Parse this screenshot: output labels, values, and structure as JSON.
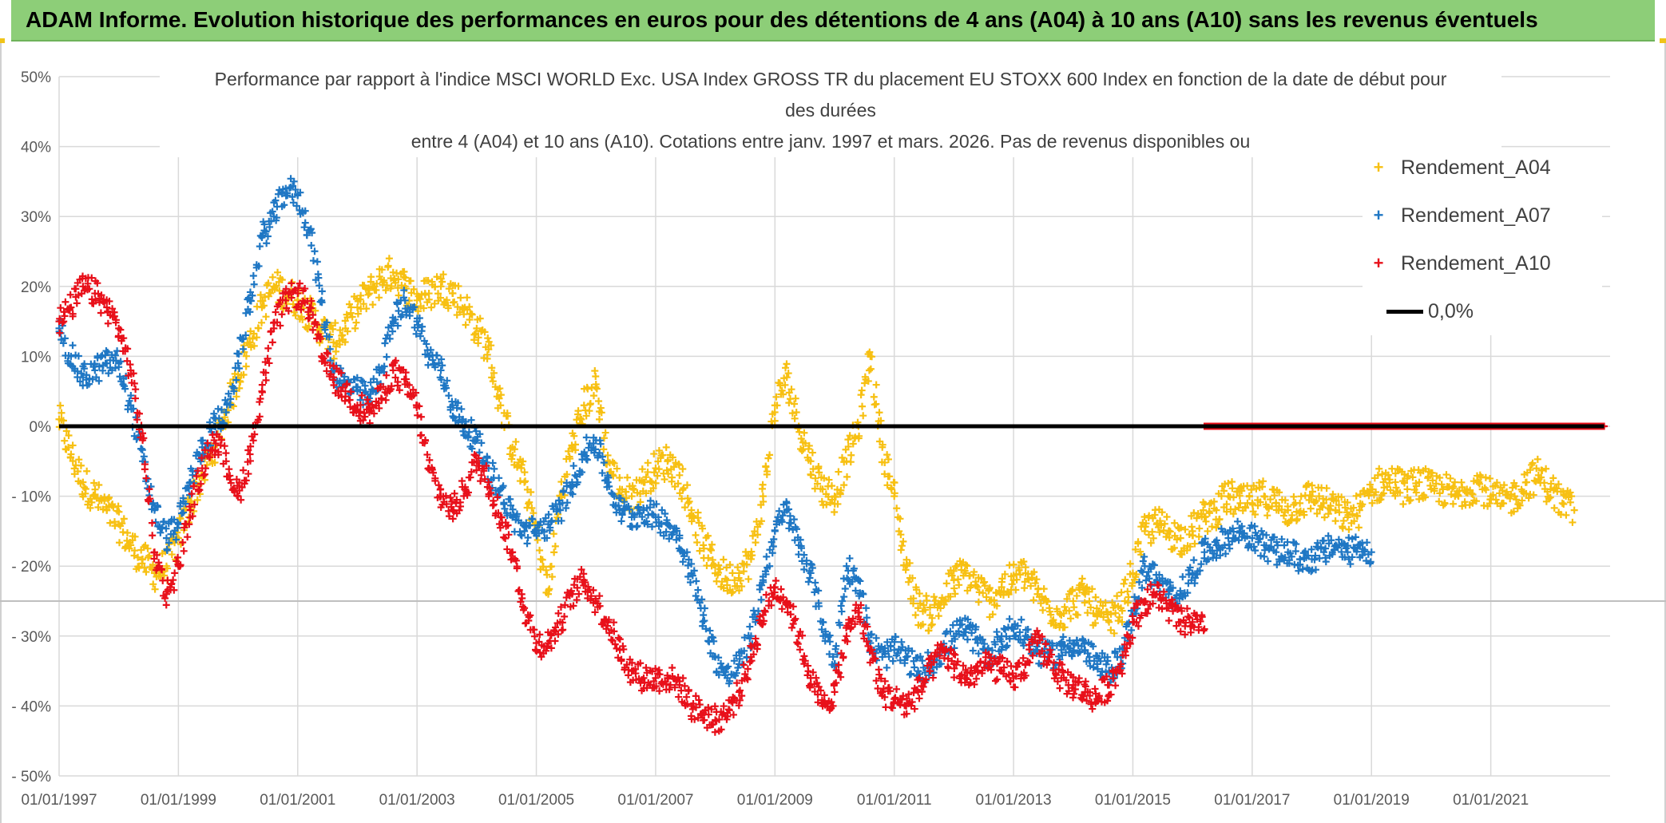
{
  "header": {
    "title": "ADAM Informe. Evolution historique des performances en euros pour des détentions de 4 ans (A04) à 10 ans (A10) sans les revenus éventuels"
  },
  "colors": {
    "banner": "#8dce78",
    "a04": "#f7c012",
    "a07": "#1f77c4",
    "a10": "#e8101a",
    "zero": "#000000",
    "grid": "#d9d9d9"
  },
  "chart_data": {
    "type": "scatter",
    "title_lines": [
      "Performance par rapport à l'indice MSCI WORLD Exc. USA Index GROSS TR  du placement EU STOXX 600 Index en fonction de la date de début pour",
      "des durées",
      "entre 4 (A04) et 10 ans (A10). Cotations entre janv. 1997 et mars. 2026. Pas de revenus disponibles ou"
    ],
    "x_range": [
      1997.0,
      2023.0
    ],
    "x_ticks": [
      {
        "value": 1997,
        "label": "01/01/1997"
      },
      {
        "value": 1999,
        "label": "01/01/1999"
      },
      {
        "value": 2001,
        "label": "01/01/2001"
      },
      {
        "value": 2003,
        "label": "01/01/2003"
      },
      {
        "value": 2005,
        "label": "01/01/2005"
      },
      {
        "value": 2007,
        "label": "01/01/2007"
      },
      {
        "value": 2009,
        "label": "01/01/2009"
      },
      {
        "value": 2011,
        "label": "01/01/2011"
      },
      {
        "value": 2013,
        "label": "01/01/2013"
      },
      {
        "value": 2015,
        "label": "01/01/2015"
      },
      {
        "value": 2017,
        "label": "01/01/2017"
      },
      {
        "value": 2019,
        "label": "01/01/2019"
      },
      {
        "value": 2021,
        "label": "01/01/2021"
      }
    ],
    "ylim": [
      -50,
      50
    ],
    "y_ticks": [
      {
        "value": 50,
        "label": "50%"
      },
      {
        "value": 40,
        "label": "40%"
      },
      {
        "value": 30,
        "label": "30%"
      },
      {
        "value": 20,
        "label": "20%"
      },
      {
        "value": 10,
        "label": "10%"
      },
      {
        "value": 0,
        "label": "0%"
      },
      {
        "value": -10,
        "label": "- 10%"
      },
      {
        "value": -20,
        "label": "- 20%"
      },
      {
        "value": -30,
        "label": "- 30%"
      },
      {
        "value": -40,
        "label": "- 40%"
      },
      {
        "value": -50,
        "label": "- 50%"
      }
    ],
    "grid": true,
    "legend_position": "top-right",
    "legend": [
      "Rendement_A04",
      "Rendement_A07",
      "Rendement_A10",
      "0,0%"
    ],
    "reference_line": {
      "name": "0,0%",
      "value": 0
    },
    "series": [
      {
        "name": "Rendement_A04",
        "x": [
          1997.0,
          1997.2,
          1997.4,
          1997.6,
          1997.8,
          1998.0,
          1998.2,
          1998.4,
          1998.6,
          1998.8,
          1999.0,
          1999.2,
          1999.4,
          1999.6,
          1999.8,
          2000.0,
          2000.2,
          2000.4,
          2000.6,
          2000.8,
          2001.0,
          2001.2,
          2001.4,
          2001.6,
          2001.8,
          2002.0,
          2002.2,
          2002.4,
          2002.6,
          2002.8,
          2003.0,
          2003.2,
          2003.4,
          2003.6,
          2003.8,
          2004.0,
          2004.2,
          2004.4,
          2004.6,
          2004.8,
          2005.0,
          2005.2,
          2005.4,
          2005.6,
          2005.8,
          2006.0,
          2006.2,
          2006.4,
          2006.6,
          2006.8,
          2007.0,
          2007.2,
          2007.4,
          2007.6,
          2007.8,
          2008.0,
          2008.2,
          2008.4,
          2008.6,
          2008.8,
          2009.0,
          2009.2,
          2009.4,
          2009.6,
          2009.8,
          2010.0,
          2010.2,
          2010.4,
          2010.6,
          2010.8,
          2011.0,
          2011.2,
          2011.4,
          2011.6,
          2011.8,
          2012.0,
          2012.2,
          2012.4,
          2012.6,
          2012.8,
          2013.0,
          2013.2,
          2013.4,
          2013.6,
          2013.8,
          2014.0,
          2014.2,
          2014.4,
          2014.6,
          2014.8,
          2015.0,
          2015.2,
          2015.4,
          2015.6,
          2015.8,
          2016.0,
          2016.2,
          2016.4,
          2016.6,
          2016.8,
          2017.0,
          2017.2,
          2017.4,
          2017.6,
          2017.8,
          2018.0,
          2018.2,
          2018.4,
          2018.6,
          2018.8,
          2019.0,
          2019.2,
          2019.4,
          2019.6,
          2019.8,
          2020.0,
          2020.2,
          2020.4,
          2020.6,
          2020.8,
          2021.0,
          2021.2,
          2021.4,
          2021.6,
          2021.8,
          2022.0,
          2022.2,
          2022.4
        ],
        "values": [
          1,
          -4,
          -8,
          -10,
          -12,
          -14,
          -17,
          -19,
          -21,
          -20,
          -16,
          -11,
          -7,
          -3,
          2,
          7,
          12,
          17,
          20,
          19,
          18,
          16,
          14,
          12,
          14,
          17,
          19,
          21,
          22,
          20,
          18,
          19,
          20,
          19,
          17,
          14,
          11,
          3,
          -3,
          -8,
          -15,
          -24,
          -10,
          -3,
          3,
          6,
          -5,
          -9,
          -10,
          -8,
          -6,
          -5,
          -7,
          -12,
          -17,
          -20,
          -22,
          -21,
          -19,
          -10,
          3,
          7,
          0,
          -5,
          -9,
          -10,
          -5,
          0,
          10,
          -3,
          -10,
          -20,
          -26,
          -27,
          -25,
          -22,
          -21,
          -23,
          -25,
          -23,
          -22,
          -21,
          -24,
          -26,
          -27,
          -25,
          -24,
          -27,
          -28,
          -26,
          -21,
          -15,
          -14,
          -15,
          -16,
          -15,
          -13,
          -12,
          -10,
          -11,
          -11,
          -10,
          -11,
          -12,
          -11,
          -10,
          -11,
          -12,
          -13,
          -12,
          -9,
          -8,
          -8,
          -9,
          -8,
          -9,
          -9,
          -10,
          -9,
          -8,
          -10,
          -11,
          -10,
          -8,
          -7,
          -9,
          -11,
          -12
        ]
      },
      {
        "name": "Rendement_A07",
        "x": [
          1997.0,
          1997.2,
          1997.4,
          1997.6,
          1997.8,
          1998.0,
          1998.2,
          1998.4,
          1998.6,
          1998.8,
          1999.0,
          1999.2,
          1999.4,
          1999.6,
          1999.8,
          2000.0,
          2000.2,
          2000.4,
          2000.6,
          2000.8,
          2001.0,
          2001.2,
          2001.4,
          2001.6,
          2001.8,
          2002.0,
          2002.2,
          2002.4,
          2002.6,
          2002.8,
          2003.0,
          2003.2,
          2003.4,
          2003.6,
          2003.8,
          2004.0,
          2004.2,
          2004.4,
          2004.6,
          2004.8,
          2005.0,
          2005.2,
          2005.4,
          2005.6,
          2005.8,
          2006.0,
          2006.2,
          2006.4,
          2006.6,
          2006.8,
          2007.0,
          2007.2,
          2007.4,
          2007.6,
          2007.8,
          2008.0,
          2008.2,
          2008.4,
          2008.6,
          2008.8,
          2009.0,
          2009.2,
          2009.4,
          2009.6,
          2009.8,
          2010.0,
          2010.2,
          2010.4,
          2010.6,
          2010.8,
          2011.0,
          2011.2,
          2011.4,
          2011.6,
          2011.8,
          2012.0,
          2012.2,
          2012.4,
          2012.6,
          2012.8,
          2013.0,
          2013.2,
          2013.4,
          2013.6,
          2013.8,
          2014.0,
          2014.2,
          2014.4,
          2014.6,
          2014.8,
          2015.0,
          2015.2,
          2015.4,
          2015.6,
          2015.8,
          2016.0,
          2016.2,
          2016.4,
          2016.6,
          2016.8,
          2017.0,
          2017.2,
          2017.4,
          2017.6,
          2017.8,
          2018.0,
          2018.2,
          2018.4,
          2018.6,
          2018.8,
          2019.0
        ],
        "values": [
          14,
          10,
          7,
          8,
          9,
          9,
          3,
          -5,
          -12,
          -16,
          -14,
          -8,
          -3,
          0,
          2,
          9,
          18,
          27,
          30,
          34,
          33,
          28,
          18,
          8,
          6,
          5,
          4,
          8,
          15,
          18,
          15,
          10,
          8,
          3,
          0,
          -2,
          -6,
          -9,
          -13,
          -15,
          -15,
          -14,
          -12,
          -8,
          -4,
          -2,
          -8,
          -12,
          -13,
          -12,
          -13,
          -14,
          -16,
          -21,
          -27,
          -33,
          -36,
          -34,
          -30,
          -22,
          -15,
          -12,
          -17,
          -21,
          -28,
          -34,
          -20,
          -22,
          -31,
          -33,
          -32,
          -33,
          -35,
          -34,
          -32,
          -30,
          -29,
          -31,
          -33,
          -30,
          -29,
          -30,
          -32,
          -33,
          -32,
          -31,
          -32,
          -34,
          -35,
          -33,
          -27,
          -20,
          -22,
          -24,
          -24,
          -21,
          -18,
          -17,
          -16,
          -15,
          -16,
          -17,
          -18,
          -18,
          -19,
          -19,
          -18,
          -17,
          -18,
          -17,
          -18
        ]
      },
      {
        "name": "Rendement_A10",
        "x": [
          1997.0,
          1997.2,
          1997.4,
          1997.6,
          1997.8,
          1998.0,
          1998.2,
          1998.4,
          1998.6,
          1998.8,
          1999.0,
          1999.2,
          1999.4,
          1999.6,
          1999.8,
          2000.0,
          2000.2,
          2000.4,
          2000.6,
          2000.8,
          2001.0,
          2001.2,
          2001.4,
          2001.6,
          2001.8,
          2002.0,
          2002.2,
          2002.4,
          2002.6,
          2002.8,
          2003.0,
          2003.2,
          2003.4,
          2003.6,
          2003.8,
          2004.0,
          2004.2,
          2004.4,
          2004.6,
          2004.8,
          2005.0,
          2005.2,
          2005.4,
          2005.6,
          2005.8,
          2006.0,
          2006.2,
          2006.4,
          2006.6,
          2006.8,
          2007.0,
          2007.2,
          2007.4,
          2007.6,
          2007.8,
          2008.0,
          2008.2,
          2008.4,
          2008.6,
          2008.8,
          2009.0,
          2009.2,
          2009.4,
          2009.6,
          2009.8,
          2010.0,
          2010.2,
          2010.4,
          2010.6,
          2010.8,
          2011.0,
          2011.2,
          2011.4,
          2011.6,
          2011.8,
          2012.0,
          2012.2,
          2012.4,
          2012.6,
          2012.8,
          2013.0,
          2013.2,
          2013.4,
          2013.6,
          2013.8,
          2014.0,
          2014.2,
          2014.4,
          2014.6,
          2014.8,
          2015.0,
          2015.2,
          2015.4,
          2015.6,
          2015.8,
          2016.0,
          2016.2
        ],
        "values": [
          15,
          17,
          20,
          19,
          17,
          14,
          8,
          -2,
          -18,
          -24,
          -20,
          -12,
          -6,
          -2,
          -5,
          -10,
          -4,
          5,
          14,
          18,
          19,
          17,
          10,
          7,
          5,
          3,
          2,
          4,
          8,
          6,
          3,
          -6,
          -10,
          -12,
          -9,
          -5,
          -8,
          -13,
          -18,
          -26,
          -31,
          -31,
          -28,
          -24,
          -22,
          -25,
          -28,
          -32,
          -35,
          -36,
          -36,
          -36,
          -37,
          -40,
          -41,
          -42,
          -41,
          -38,
          -33,
          -27,
          -23,
          -25,
          -30,
          -36,
          -40,
          -38,
          -30,
          -26,
          -32,
          -38,
          -39,
          -40,
          -38,
          -35,
          -32,
          -34,
          -36,
          -35,
          -34,
          -35,
          -36,
          -34,
          -31,
          -33,
          -36,
          -37,
          -38,
          -39,
          -37,
          -34,
          -28,
          -25,
          -24,
          -26,
          -28,
          -28,
          -29
        ]
      },
      {
        "name": "0,0%",
        "x": [
          1997.0,
          2022.9
        ],
        "values": [
          0,
          0
        ]
      }
    ],
    "a10_zero_segment": {
      "x_start": 2016.2,
      "x_end": 2022.9,
      "value": 0
    }
  }
}
